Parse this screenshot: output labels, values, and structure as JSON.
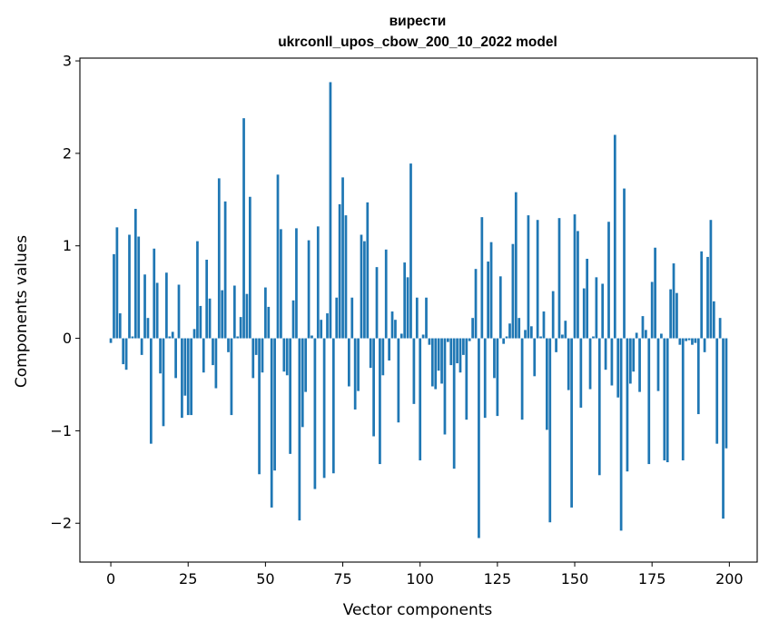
{
  "chart_data": {
    "type": "bar",
    "title_line1": "вирести",
    "title_line2": "ukrconll_upos_cbow_200_10_2022 model",
    "xlabel": "Vector components",
    "ylabel": "Components values",
    "xlim": [
      -10,
      209
    ],
    "ylim": [
      -2.42,
      3.03
    ],
    "xticks": [
      0,
      25,
      50,
      75,
      100,
      125,
      150,
      175,
      200
    ],
    "xtick_labels": [
      "0",
      "25",
      "50",
      "75",
      "100",
      "125",
      "150",
      "175",
      "200"
    ],
    "yticks": [
      -2,
      -1,
      0,
      1,
      2,
      3
    ],
    "ytick_labels": [
      "−2",
      "−1",
      "0",
      "1",
      "2",
      "3"
    ],
    "bar_color": "#1f77b4",
    "grid": false,
    "legend": "none",
    "x": [
      0,
      1,
      2,
      3,
      4,
      5,
      6,
      7,
      8,
      9,
      10,
      11,
      12,
      13,
      14,
      15,
      16,
      17,
      18,
      19,
      20,
      21,
      22,
      23,
      24,
      25,
      26,
      27,
      28,
      29,
      30,
      31,
      32,
      33,
      34,
      35,
      36,
      37,
      38,
      39,
      40,
      41,
      42,
      43,
      44,
      45,
      46,
      47,
      48,
      49,
      50,
      51,
      52,
      53,
      54,
      55,
      56,
      57,
      58,
      59,
      60,
      61,
      62,
      63,
      64,
      65,
      66,
      67,
      68,
      69,
      70,
      71,
      72,
      73,
      74,
      75,
      76,
      77,
      78,
      79,
      80,
      81,
      82,
      83,
      84,
      85,
      86,
      87,
      88,
      89,
      90,
      91,
      92,
      93,
      94,
      95,
      96,
      97,
      98,
      99,
      100,
      101,
      102,
      103,
      104,
      105,
      106,
      107,
      108,
      109,
      110,
      111,
      112,
      113,
      114,
      115,
      116,
      117,
      118,
      119,
      120,
      121,
      122,
      123,
      124,
      125,
      126,
      127,
      128,
      129,
      130,
      131,
      132,
      133,
      134,
      135,
      136,
      137,
      138,
      139,
      140,
      141,
      142,
      143,
      144,
      145,
      146,
      147,
      148,
      149,
      150,
      151,
      152,
      153,
      154,
      155,
      156,
      157,
      158,
      159,
      160,
      161,
      162,
      163,
      164,
      165,
      166,
      167,
      168,
      169,
      170,
      171,
      172,
      173,
      174,
      175,
      176,
      177,
      178,
      179,
      180,
      181,
      182,
      183,
      184,
      185,
      186,
      187,
      188,
      189,
      190,
      191,
      192,
      193,
      194,
      195,
      196,
      197,
      198,
      199
    ],
    "values": [
      -0.05,
      0.91,
      1.2,
      0.27,
      -0.28,
      -0.34,
      1.12,
      0.02,
      1.4,
      1.1,
      -0.18,
      0.69,
      0.22,
      -1.14,
      0.97,
      0.6,
      -0.38,
      -0.95,
      0.71,
      0.02,
      0.07,
      -0.43,
      0.58,
      -0.86,
      -0.62,
      -0.83,
      -0.83,
      0.1,
      1.05,
      0.35,
      -0.37,
      0.85,
      0.43,
      -0.29,
      -0.54,
      1.73,
      0.52,
      1.48,
      -0.15,
      -0.83,
      0.57,
      0.02,
      0.23,
      2.38,
      0.48,
      1.53,
      -0.43,
      -0.18,
      -1.47,
      -0.37,
      0.55,
      0.34,
      -1.83,
      -1.43,
      1.77,
      1.18,
      -0.36,
      -0.4,
      -1.25,
      0.41,
      1.19,
      -1.97,
      -0.96,
      -0.58,
      1.06,
      0.03,
      -1.63,
      1.21,
      0.2,
      -1.51,
      0.27,
      2.77,
      -1.46,
      0.44,
      1.45,
      1.74,
      1.33,
      -0.52,
      0.44,
      -0.77,
      -0.57,
      1.12,
      1.05,
      1.47,
      -0.32,
      -1.06,
      0.77,
      -1.36,
      -0.4,
      0.96,
      -0.24,
      0.29,
      0.2,
      -0.91,
      0.05,
      0.82,
      0.66,
      1.89,
      -0.71,
      0.44,
      -1.32,
      0.04,
      0.44,
      -0.07,
      -0.52,
      -0.55,
      -0.35,
      -0.49,
      -1.04,
      -0.04,
      -0.29,
      -1.41,
      -0.27,
      -0.37,
      -0.18,
      -0.88,
      -0.03,
      0.22,
      0.75,
      -2.16,
      1.31,
      -0.86,
      0.83,
      1.04,
      -0.43,
      -0.84,
      0.67,
      -0.06,
      0.02,
      0.16,
      1.02,
      1.58,
      0.22,
      -0.88,
      0.09,
      1.33,
      0.13,
      -0.41,
      1.28,
      0.02,
      0.29,
      -0.99,
      -1.99,
      0.51,
      -0.15,
      1.3,
      0.04,
      0.19,
      -0.56,
      -1.83,
      1.34,
      1.16,
      -0.75,
      0.54,
      0.86,
      -0.55,
      0.02,
      0.66,
      -1.48,
      0.59,
      -0.34,
      1.26,
      -0.51,
      2.2,
      -0.64,
      -2.08,
      1.62,
      -1.44,
      -0.49,
      -0.36,
      0.06,
      -0.58,
      0.24,
      0.09,
      -1.36,
      0.61,
      0.98,
      -0.57,
      0.05,
      -1.32,
      -1.34,
      0.53,
      0.81,
      0.49,
      -0.07,
      -1.32,
      -0.03,
      -0.02,
      -0.07,
      -0.05,
      -0.82,
      0.94,
      -0.15,
      0.88,
      1.28,
      0.4,
      -1.14,
      0.22,
      -1.95,
      -1.19
    ]
  }
}
